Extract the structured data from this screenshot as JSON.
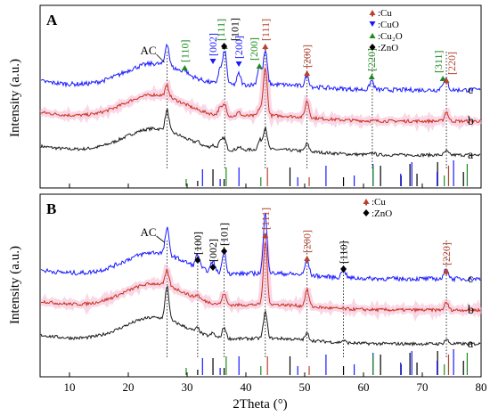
{
  "figure": {
    "xlabel": "2Theta (°)",
    "ylabel": "Intensity (a.u.)"
  },
  "colors": {
    "curve_a": "#1a1a1a",
    "curve_b": "#c8321e",
    "curve_c": "#1a1aff",
    "cu": "#b5442c",
    "cuo": "#1a1aff",
    "cu2o": "#1f8a1f",
    "zno": "#000000",
    "pink_band": "#f5b7d2"
  },
  "chart_data": [
    {
      "type": "line",
      "panel_label": "A",
      "xlim": [
        5,
        80
      ],
      "xticks": [
        10,
        20,
        30,
        40,
        50,
        60,
        70,
        80
      ],
      "y_ticks_shown": false,
      "grid": false,
      "legend_position": "top-right",
      "legend": [
        {
          "symbol": "cu-marker",
          "label": ":Cu",
          "color": "#b5442c"
        },
        {
          "symbol": "cuo-marker",
          "label": ":CuO",
          "color": "#1a1aff"
        },
        {
          "symbol": "cu2o-marker",
          "label": ":Cu₂O",
          "color": "#1f8a1f"
        },
        {
          "symbol": "zno-marker",
          "label": ":ZnO",
          "color": "#000000"
        }
      ],
      "series": [
        {
          "name": "a",
          "color": "#1a1a1a",
          "offset": 0.0,
          "peaks": [
            [
              26.6,
              0.55
            ],
            [
              31.8,
              0.06
            ],
            [
              34.4,
              0.08
            ],
            [
              35.6,
              0.18
            ],
            [
              36.3,
              0.3
            ],
            [
              38.8,
              0.08
            ],
            [
              42.4,
              0.25
            ],
            [
              43.3,
              0.6
            ],
            [
              50.4,
              0.2
            ],
            [
              61.6,
              0.06
            ],
            [
              74.1,
              0.1
            ]
          ]
        },
        {
          "name": "b",
          "color": "#c8321e",
          "offset": 1.0,
          "peaks": [
            [
              26.6,
              0.3
            ],
            [
              35.6,
              0.2
            ],
            [
              36.4,
              0.3
            ],
            [
              38.8,
              0.1
            ],
            [
              42.4,
              0.2
            ],
            [
              43.3,
              1.3
            ],
            [
              50.4,
              0.45
            ],
            [
              74.1,
              0.25
            ]
          ]
        },
        {
          "name": "c",
          "color": "#1a1aff",
          "offset": 1.9,
          "peaks": [
            [
              26.6,
              0.6
            ],
            [
              29.6,
              0.1
            ],
            [
              35.6,
              0.4
            ],
            [
              36.4,
              0.9
            ],
            [
              38.8,
              0.3
            ],
            [
              42.3,
              0.5
            ],
            [
              43.3,
              0.9
            ],
            [
              50.4,
              0.3
            ],
            [
              61.4,
              0.25
            ],
            [
              73.5,
              0.15
            ],
            [
              74.1,
              0.25
            ]
          ]
        }
      ],
      "reference_lines_x": [
        26.6,
        36.4,
        43.3,
        50.4,
        61.5,
        74.1
      ],
      "annotations": [
        {
          "text": "AC",
          "x": 26.6,
          "color": "#000000"
        },
        {
          "text": "[110]",
          "x": 29.6,
          "color": "#1f8a1f",
          "marker": "cu2o"
        },
        {
          "text": "[002]",
          "x": 34.4,
          "color": "#1a1aff",
          "marker": "cuo"
        },
        {
          "text": "[111]",
          "x": 36.4,
          "color": "#1f8a1f",
          "marker": "cu2o"
        },
        {
          "text": "[101]",
          "x": 36.3,
          "color": "#000000",
          "marker": "zno"
        },
        {
          "text": "[200]",
          "x": 38.8,
          "color": "#1a1aff",
          "marker": "cuo"
        },
        {
          "text": "[200]",
          "x": 42.3,
          "color": "#1f8a1f",
          "marker": "cu2o"
        },
        {
          "text": "[111]",
          "x": 43.3,
          "color": "#b5442c",
          "marker": "cu"
        },
        {
          "text": "[200]",
          "x": 50.4,
          "color": "#b5442c",
          "marker": "cu"
        },
        {
          "text": "[220]",
          "x": 61.4,
          "color": "#1f8a1f",
          "marker": "cu2o"
        },
        {
          "text": "[311]",
          "x": 73.5,
          "color": "#1f8a1f",
          "marker": "cu2o"
        },
        {
          "text": "[220]",
          "x": 74.1,
          "color": "#b5442c",
          "marker": "cu"
        }
      ],
      "reference_sticks": [
        {
          "color": "#000000",
          "x": [
            31.8,
            34.4,
            36.3,
            47.5,
            56.6,
            62.9,
            66.4,
            67.9,
            69.1,
            72.6,
            77.0
          ]
        },
        {
          "color": "#1a1aff",
          "x": [
            32.5,
            35.5,
            38.7,
            48.7,
            53.5,
            58.3,
            61.5,
            66.2,
            68.1,
            72.4,
            75.2
          ]
        },
        {
          "color": "#1f8a1f",
          "x": [
            29.6,
            36.4,
            42.3,
            61.4,
            73.5,
            77.4
          ]
        },
        {
          "color": "#b5442c",
          "x": [
            43.3,
            50.4,
            74.1
          ]
        }
      ]
    },
    {
      "type": "line",
      "panel_label": "B",
      "xlim": [
        5,
        80
      ],
      "xticks": [
        10,
        20,
        30,
        40,
        50,
        60,
        70,
        80
      ],
      "y_ticks_shown": false,
      "grid": false,
      "legend_position": "top-right",
      "legend": [
        {
          "symbol": "cu-marker",
          "label": ":Cu",
          "color": "#b5442c"
        },
        {
          "symbol": "zno-marker",
          "label": ":ZnO",
          "color": "#000000"
        }
      ],
      "series": [
        {
          "name": "a",
          "color": "#1a1a1a",
          "offset": 0.0,
          "peaks": [
            [
              26.6,
              0.9
            ],
            [
              31.8,
              0.12
            ],
            [
              34.4,
              0.1
            ],
            [
              36.3,
              0.3
            ],
            [
              43.3,
              0.7
            ],
            [
              50.4,
              0.18
            ],
            [
              56.6,
              0.06
            ],
            [
              74.1,
              0.12
            ]
          ]
        },
        {
          "name": "b",
          "color": "#c8321e",
          "offset": 1.0,
          "peaks": [
            [
              26.6,
              0.4
            ],
            [
              31.8,
              0.1
            ],
            [
              36.3,
              0.3
            ],
            [
              43.3,
              1.7
            ],
            [
              50.4,
              0.45
            ],
            [
              74.1,
              0.2
            ]
          ]
        },
        {
          "name": "c",
          "color": "#1a1aff",
          "offset": 1.9,
          "peaks": [
            [
              26.6,
              0.7
            ],
            [
              31.8,
              0.35
            ],
            [
              34.4,
              0.3
            ],
            [
              36.3,
              0.6
            ],
            [
              43.3,
              1.6
            ],
            [
              50.4,
              0.45
            ],
            [
              56.6,
              0.25
            ],
            [
              74.1,
              0.3
            ]
          ]
        }
      ],
      "reference_lines_x": [
        26.6,
        31.8,
        36.3,
        43.3,
        50.4,
        56.6,
        74.1
      ],
      "annotations": [
        {
          "text": "AC",
          "x": 26.6,
          "color": "#000000"
        },
        {
          "text": "[100]",
          "x": 31.8,
          "color": "#000000",
          "marker": "zno"
        },
        {
          "text": "[002]",
          "x": 34.4,
          "color": "#000000",
          "marker": "zno"
        },
        {
          "text": "[101]",
          "x": 36.3,
          "color": "#000000",
          "marker": "zno"
        },
        {
          "text": "[111]",
          "x": 43.3,
          "color": "#b5442c",
          "marker": "cu"
        },
        {
          "text": "[200]",
          "x": 50.4,
          "color": "#b5442c",
          "marker": "cu"
        },
        {
          "text": "[110]",
          "x": 56.6,
          "color": "#000000",
          "marker": "zno"
        },
        {
          "text": "[220]",
          "x": 74.1,
          "color": "#b5442c",
          "marker": "cu"
        }
      ],
      "reference_sticks": [
        {
          "color": "#000000",
          "x": [
            31.8,
            34.4,
            36.3,
            47.5,
            56.6,
            62.9,
            66.4,
            67.9,
            69.1,
            72.6,
            77.0
          ]
        },
        {
          "color": "#1a1aff",
          "x": [
            32.5,
            35.5,
            38.7,
            48.7,
            53.5,
            58.3,
            61.5,
            66.2,
            68.1,
            72.4,
            75.2
          ]
        },
        {
          "color": "#1f8a1f",
          "x": [
            29.6,
            36.4,
            42.3,
            61.4,
            73.5,
            77.4
          ]
        },
        {
          "color": "#b5442c",
          "x": [
            43.3,
            50.4,
            74.1
          ]
        }
      ]
    }
  ]
}
